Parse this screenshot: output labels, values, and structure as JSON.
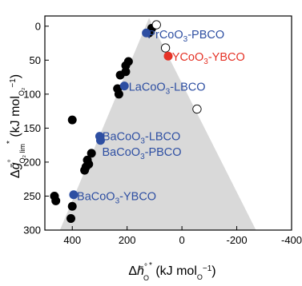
{
  "chart_data": {
    "type": "scatter",
    "title": "",
    "xlabel": "Δh̄°O* (kJ molO−1)",
    "ylabel": "Δḡ°O2 lim* (kJ molO2−1)",
    "xlim": [
      500,
      -400
    ],
    "ylim": [
      300,
      -15
    ],
    "x_reversed": true,
    "y_reversed": true,
    "grid": false,
    "x_ticks": [
      {
        "value": 400,
        "label": "400"
      },
      {
        "value": 200,
        "label": "200"
      },
      {
        "value": 0,
        "label": "0"
      },
      {
        "value": -200,
        "label": "-200"
      },
      {
        "value": -400,
        "label": "-400"
      }
    ],
    "y_ticks": [
      {
        "value": 0,
        "label": "0"
      },
      {
        "value": 50,
        "label": "50"
      },
      {
        "value": 100,
        "label": "100"
      },
      {
        "value": 150,
        "label": "150"
      },
      {
        "value": 200,
        "label": "200"
      },
      {
        "value": 250,
        "label": "250"
      },
      {
        "value": 300,
        "label": "300"
      }
    ],
    "region": {
      "description": "stability triangle",
      "color": "#d9d9d9",
      "vertices": [
        [
          120,
          -12
        ],
        [
          445,
          300
        ],
        [
          -270,
          300
        ]
      ]
    },
    "series": [
      {
        "style": "black-filled",
        "color": "#000000",
        "points": [
          [
            110,
            3
          ],
          [
            120,
            10
          ],
          [
            195,
            52
          ],
          [
            205,
            58
          ],
          [
            225,
            72
          ],
          [
            205,
            67
          ],
          [
            235,
            92
          ],
          [
            230,
            100
          ],
          [
            400,
            138
          ],
          [
            345,
            197
          ],
          [
            350,
            207
          ],
          [
            340,
            203
          ],
          [
            355,
            212
          ],
          [
            330,
            187
          ],
          [
            465,
            250
          ],
          [
            460,
            257
          ],
          [
            400,
            265
          ],
          [
            405,
            283
          ]
        ]
      },
      {
        "style": "white-open",
        "color": "#ffffff",
        "points": [
          [
            93,
            -2
          ],
          [
            60,
            32
          ],
          [
            -55,
            122
          ]
        ]
      },
      {
        "style": "blue-filled",
        "color": "#2e4fa2",
        "points": [
          [
            130,
            10
          ],
          [
            210,
            88
          ],
          [
            300,
            162
          ],
          [
            297,
            168
          ],
          [
            395,
            248
          ]
        ]
      },
      {
        "style": "red-filled",
        "color": "#e53327",
        "points": [
          [
            50,
            44
          ]
        ]
      }
    ],
    "annotations": [
      {
        "parts": [
          [
            "PrCoO",
            "3",
            "-PBCO"
          ]
        ],
        "color": "#2e4fa2",
        "x": 125,
        "y": 12
      },
      {
        "parts": [
          [
            "YCoO",
            "3",
            "-YBCO"
          ]
        ],
        "color": "#e53327",
        "x": 36,
        "y": 45
      },
      {
        "parts": [
          [
            "LaCoO",
            "3",
            "-LBCO"
          ]
        ],
        "color": "#2e4fa2",
        "x": 194,
        "y": 89
      },
      {
        "parts": [
          [
            "BaCoO",
            "3",
            "-LBCO"
          ]
        ],
        "color": "#2e4fa2",
        "x": 290,
        "y": 162
      },
      {
        "parts": [
          [
            "BaCoO",
            "3",
            "-PBCO"
          ]
        ],
        "color": "#2e4fa2",
        "x": 291,
        "y": 185
      },
      {
        "parts": [
          [
            "BaCoO",
            "3",
            "-YBCO"
          ]
        ],
        "color": "#2e4fa2",
        "x": 383,
        "y": 250
      }
    ]
  }
}
